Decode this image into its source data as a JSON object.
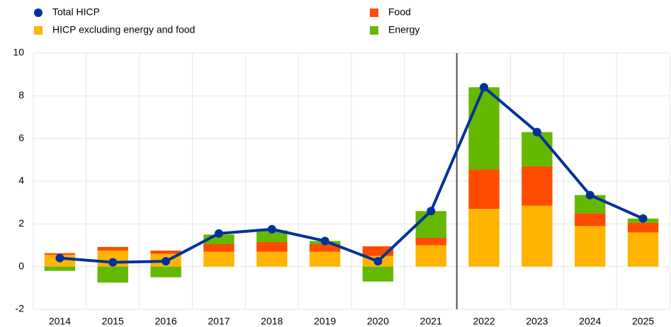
{
  "chart_data": {
    "type": "bar",
    "categories": [
      "2014",
      "2015",
      "2016",
      "2017",
      "2018",
      "2019",
      "2020",
      "2021",
      "2022",
      "2023",
      "2024",
      "2025"
    ],
    "series": [
      {
        "name": "Total HICP",
        "type": "line",
        "color": "#003299",
        "values": [
          0.4,
          0.2,
          0.25,
          1.55,
          1.75,
          1.2,
          0.25,
          2.6,
          8.4,
          6.3,
          3.35,
          2.25
        ]
      },
      {
        "name": "HICP excluding energy and food",
        "color": "#ffb400",
        "values": [
          0.55,
          0.75,
          0.6,
          0.7,
          0.7,
          0.7,
          0.5,
          1.0,
          2.7,
          2.85,
          1.9,
          1.6
        ]
      },
      {
        "name": "Food",
        "color": "#ff4b00",
        "values": [
          0.08,
          0.17,
          0.15,
          0.35,
          0.45,
          0.35,
          0.45,
          0.35,
          1.85,
          1.85,
          0.6,
          0.45
        ]
      },
      {
        "name": "Energy",
        "color": "#65b800",
        "values": [
          -0.2,
          -0.75,
          -0.5,
          0.45,
          0.55,
          0.15,
          -0.7,
          1.25,
          3.85,
          1.6,
          0.85,
          0.2
        ]
      }
    ],
    "ylim": [
      -2,
      10
    ],
    "yticks": [
      -2,
      0,
      2,
      4,
      6,
      8,
      10
    ],
    "grid": true
  }
}
